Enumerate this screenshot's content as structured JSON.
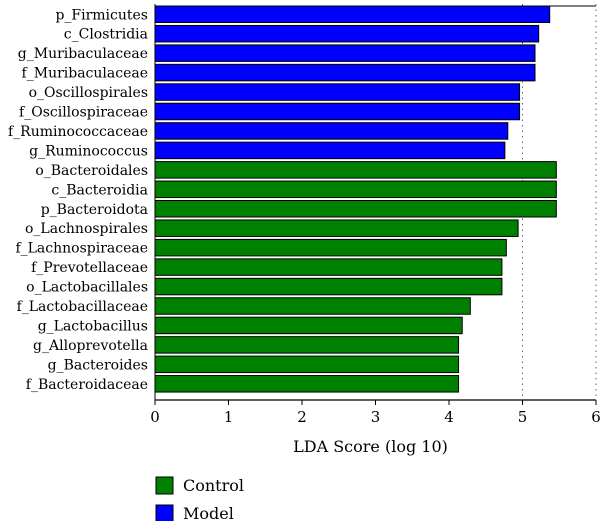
{
  "chart_data": {
    "type": "bar",
    "orientation": "horizontal",
    "title": "",
    "xlabel": "LDA Score (log 10)",
    "ylabel": "",
    "xlim": [
      0,
      6
    ],
    "xticks": [
      0,
      1,
      2,
      3,
      4,
      5,
      6
    ],
    "grid": "dotted vertical lines at 5 and 6",
    "legend_position": "bottom-left",
    "colors": {
      "Control": "#008000",
      "Model": "#0000ff",
      "bar_stroke": "#000000"
    },
    "series": [
      {
        "name": "Model",
        "categories": [
          "p_Firmicutes",
          "c_Clostridia",
          "g_Muribaculaceae",
          "f_Muribaculaceae",
          "o_Oscillospirales",
          "f_Oscillospiraceae",
          "f_Ruminococcaceae",
          "g_Ruminococcus"
        ],
        "values": [
          5.37,
          5.22,
          5.17,
          5.17,
          4.96,
          4.96,
          4.8,
          4.76
        ]
      },
      {
        "name": "Control",
        "categories": [
          "o_Bacteroidales",
          "c_Bacteroidia",
          "p_Bacteroidota",
          "o_Lachnospirales",
          "f_Lachnospiraceae",
          "f_Prevotellaceae",
          "o_Lactobacillales",
          "f_Lactobacillaceae",
          "g_Lactobacillus",
          "g_Alloprevotella",
          "g_Bacteroides",
          "f_Bacteroidaceae"
        ],
        "values": [
          5.46,
          5.46,
          5.46,
          4.94,
          4.78,
          4.72,
          4.72,
          4.29,
          4.18,
          4.13,
          4.13,
          4.13
        ]
      }
    ],
    "legend": [
      "Control",
      "Model"
    ]
  }
}
